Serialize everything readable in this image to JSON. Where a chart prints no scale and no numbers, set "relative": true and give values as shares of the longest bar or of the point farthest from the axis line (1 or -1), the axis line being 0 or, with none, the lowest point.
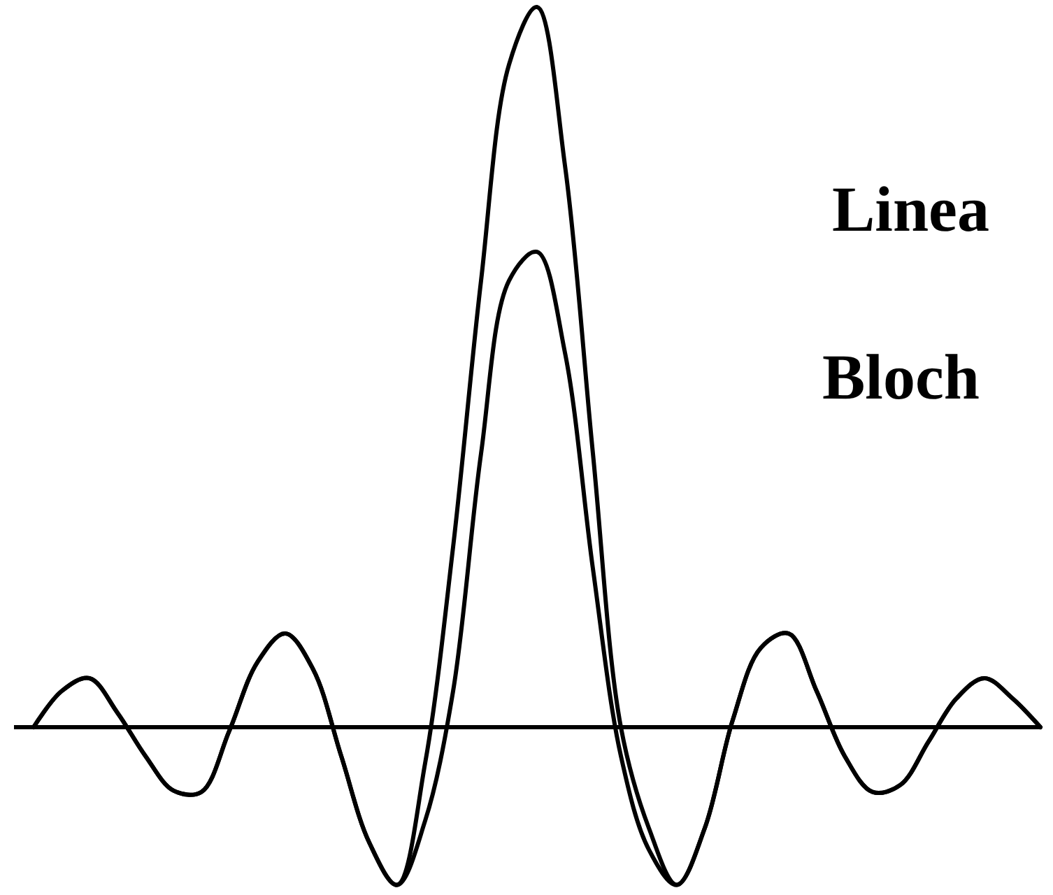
{
  "chart_data": {
    "type": "line",
    "relative": true,
    "categories": [
      null,
      null,
      null,
      null,
      null,
      null,
      null,
      null,
      null,
      null,
      null,
      null,
      null,
      null,
      null,
      null,
      null,
      null,
      null,
      null,
      null,
      null,
      null,
      null,
      null,
      null,
      null,
      null,
      null,
      null,
      null,
      null,
      null,
      null,
      null,
      null,
      null
    ],
    "series": [
      {
        "color": "#000000",
        "values": [
          0,
          0.05,
          0.068,
          0.02,
          -0.04,
          -0.088,
          -0.09,
          -0.005,
          0.09,
          0.13,
          0.08,
          -0.04,
          -0.16,
          -0.219,
          -0.05,
          0.25,
          0.62,
          0.92,
          1,
          0.78,
          0.38,
          0,
          -0.14,
          -0.219,
          -0.14,
          0.01,
          0.11,
          0.13,
          0.05,
          -0.04,
          -0.09,
          -0.08,
          -0.02,
          0.04,
          0.068,
          0.04,
          0
        ]
      },
      {
        "color": "#000000",
        "values": [
          0,
          0.05,
          0.068,
          0.02,
          -0.04,
          -0.088,
          -0.09,
          -0.005,
          0.09,
          0.13,
          0.08,
          -0.04,
          -0.16,
          -0.219,
          -0.13,
          0.05,
          0.38,
          0.62,
          0.66,
          0.52,
          0.22,
          -0.04,
          -0.17,
          -0.219,
          -0.14,
          0.01,
          0.11,
          0.13,
          0.05,
          -0.04,
          -0.09,
          -0.08,
          -0.02,
          0.04,
          0.068,
          0.04,
          0
        ]
      }
    ],
    "annotations": [
      "Linea",
      "Bloch"
    ],
    "line_style": "solid",
    "marker": "none"
  }
}
